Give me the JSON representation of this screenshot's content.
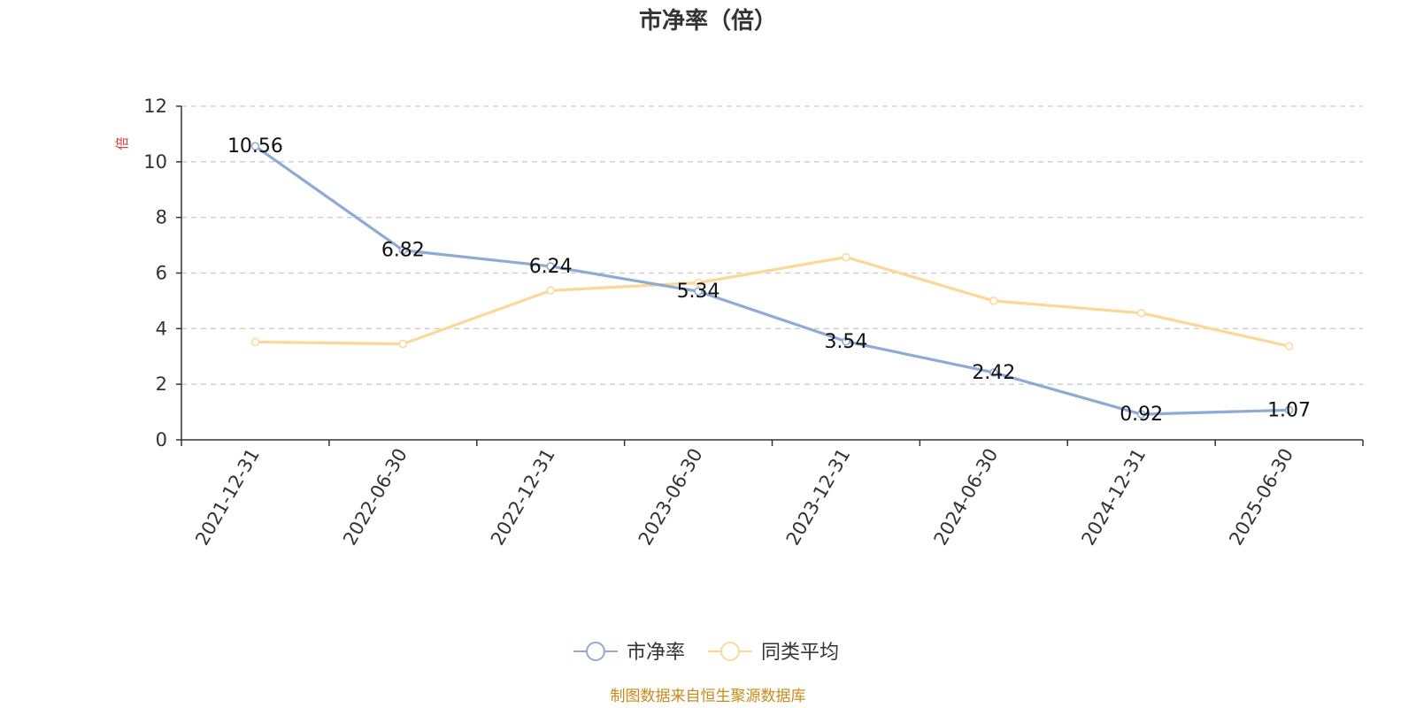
{
  "chart_data": {
    "type": "line",
    "title": "市净率（倍）",
    "ylabel": "倍",
    "ylim": [
      0,
      12
    ],
    "y_ticks": [
      0,
      2,
      4,
      6,
      8,
      10,
      12
    ],
    "grid": true,
    "categories": [
      "2021-12-31",
      "2022-06-30",
      "2022-12-31",
      "2023-06-30",
      "2023-12-31",
      "2024-06-30",
      "2024-12-31",
      "2025-06-30"
    ],
    "series": [
      {
        "name": "市净率",
        "color": "#8eabd6",
        "values": [
          10.56,
          6.82,
          6.24,
          5.34,
          3.54,
          2.42,
          0.92,
          1.07
        ],
        "labels": [
          "10.56",
          "6.82",
          "6.24",
          "5.34",
          "3.54",
          "2.42",
          "0.92",
          "1.07"
        ],
        "show_labels": true
      },
      {
        "name": "同类平均",
        "color": "#fbd897",
        "values": [
          3.52,
          3.45,
          5.37,
          5.65,
          6.57,
          5.0,
          4.56,
          3.37
        ],
        "show_labels": false
      }
    ],
    "legend_position": "bottom-center"
  },
  "source_note": "制图数据来自恒生聚源数据库",
  "colors": {
    "unit_label": "#e4393c",
    "source_note": "#c98a1a",
    "grid": "#cccccc",
    "axis": "#333333"
  }
}
